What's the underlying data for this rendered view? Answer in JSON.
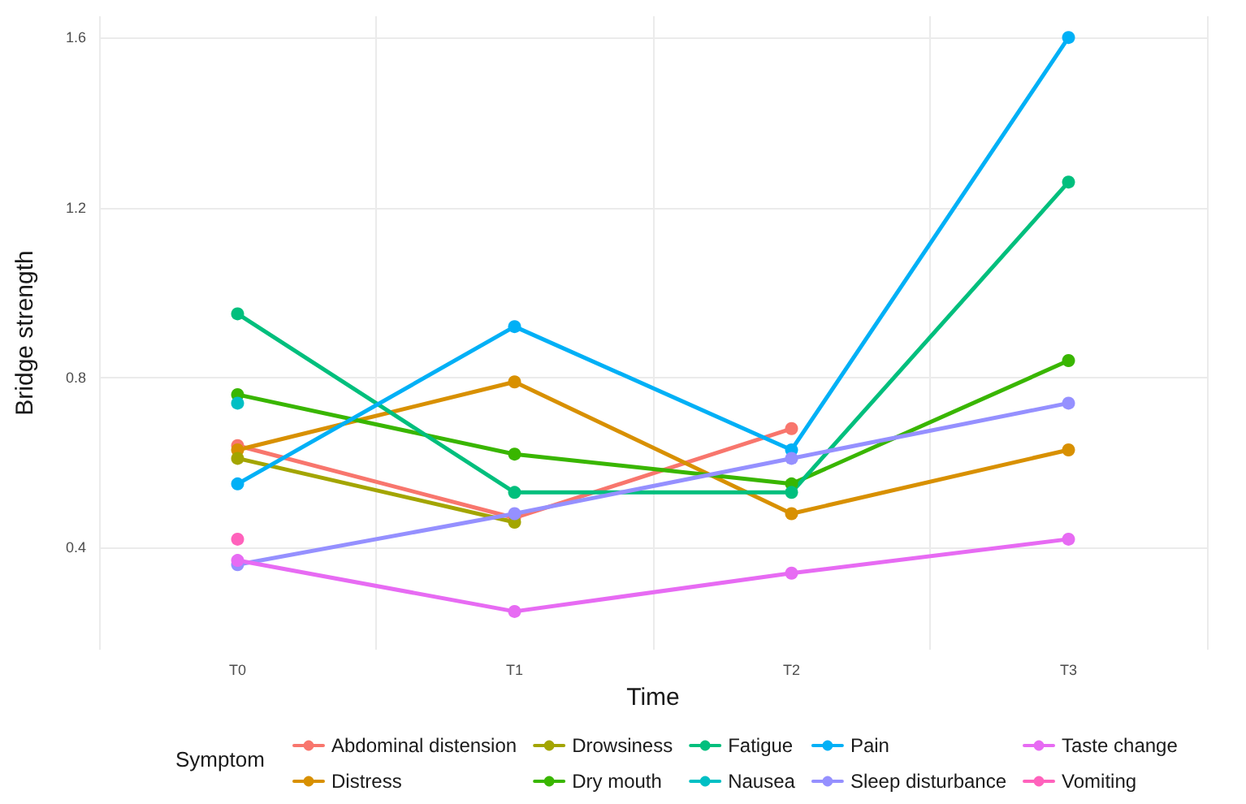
{
  "chart_data": {
    "type": "line",
    "xlabel": "Time",
    "ylabel": "Bridge strength",
    "legend_title": "Symptom",
    "categories": [
      "T0",
      "T1",
      "T2",
      "T3"
    ],
    "series": [
      {
        "name": "Abdominal distension",
        "color": "#F8766D",
        "values": [
          0.64,
          0.47,
          0.68,
          null
        ]
      },
      {
        "name": "Distress",
        "color": "#D89000",
        "values": [
          0.63,
          0.79,
          0.48,
          0.63
        ]
      },
      {
        "name": "Drowsiness",
        "color": "#A3A500",
        "values": [
          0.61,
          0.46,
          null,
          null
        ]
      },
      {
        "name": "Dry mouth",
        "color": "#39B600",
        "values": [
          0.76,
          0.62,
          0.55,
          0.84
        ]
      },
      {
        "name": "Fatigue",
        "color": "#00BF7D",
        "values": [
          0.95,
          0.53,
          0.53,
          1.26
        ]
      },
      {
        "name": "Nausea",
        "color": "#00BFC4",
        "values": [
          0.74,
          null,
          null,
          null
        ]
      },
      {
        "name": "Pain",
        "color": "#00B0F6",
        "values": [
          0.55,
          0.92,
          0.63,
          1.6
        ]
      },
      {
        "name": "Sleep disturbance",
        "color": "#9590FF",
        "values": [
          0.36,
          0.48,
          0.61,
          0.74
        ]
      },
      {
        "name": "Taste change",
        "color": "#E76BF3",
        "values": [
          0.37,
          0.25,
          0.34,
          0.42
        ]
      },
      {
        "name": "Vomiting",
        "color": "#FF62BC",
        "values": [
          0.42,
          null,
          null,
          null
        ]
      }
    ],
    "ylim": [
      0.16,
      1.65
    ],
    "yticks": [
      0.4,
      0.8,
      1.2,
      1.6
    ],
    "grid": true,
    "legend": "bottom",
    "marker": "circle",
    "line_style": "solid"
  }
}
